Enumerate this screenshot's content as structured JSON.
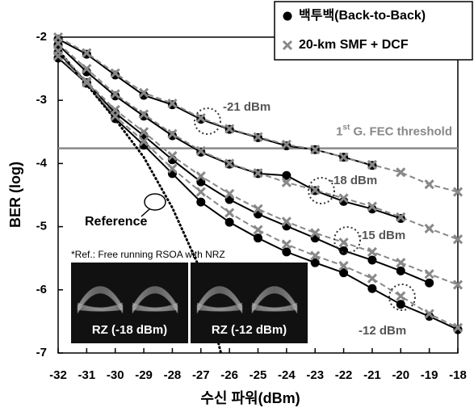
{
  "chart_data": {
    "type": "line",
    "x_label": "수신 파워(dBm)",
    "y_label": "BER (log)",
    "xlim": [
      -32,
      -18
    ],
    "ylim": [
      -7,
      -2
    ],
    "xticks": [
      -32,
      -31,
      -30,
      -29,
      -28,
      -27,
      -26,
      -25,
      -24,
      -23,
      -22,
      -21,
      -20,
      -19,
      -18
    ],
    "yticks": [
      -7,
      -6,
      -5,
      -4,
      -3,
      -2
    ],
    "series": [
      {
        "name": "백투백(Back-to-Back)",
        "color": "#000000",
        "marker": "circle",
        "dashed": false,
        "curves": [
          {
            "x": [
              -32,
              -31,
              -30,
              -29,
              -28,
              -27,
              -26,
              -25,
              -24,
              -23,
              -22,
              -21
            ],
            "values": [
              -2.03,
              -2.27,
              -2.6,
              -2.92,
              -3.07,
              -3.3,
              -3.46,
              -3.59,
              -3.72,
              -3.78,
              -3.9,
              -4.03
            ]
          },
          {
            "x": [
              -32,
              -31,
              -30,
              -29,
              -28,
              -27,
              -26,
              -25,
              -24,
              -23,
              -22,
              -21,
              -20
            ],
            "values": [
              -2.12,
              -2.55,
              -2.93,
              -3.25,
              -3.56,
              -3.82,
              -4.01,
              -4.16,
              -4.19,
              -4.43,
              -4.6,
              -4.72,
              -4.87
            ]
          },
          {
            "x": [
              -32,
              -31,
              -30,
              -29,
              -28,
              -27,
              -26,
              -25,
              -24,
              -23,
              -22,
              -21,
              -20,
              -19
            ],
            "values": [
              -2.24,
              -2.72,
              -3.2,
              -3.56,
              -3.94,
              -4.29,
              -4.57,
              -4.8,
              -4.99,
              -5.18,
              -5.38,
              -5.53,
              -5.7,
              -5.89
            ]
          },
          {
            "x": [
              -32,
              -31,
              -30,
              -29,
              -28,
              -27,
              -26,
              -25,
              -24,
              -23,
              -22,
              -21,
              -20,
              -19,
              -18
            ],
            "values": [
              -2.33,
              -2.73,
              -3.29,
              -3.71,
              -4.16,
              -4.61,
              -4.93,
              -5.18,
              -5.4,
              -5.57,
              -5.73,
              -5.98,
              -6.23,
              -6.42,
              -6.63
            ]
          }
        ]
      },
      {
        "name": "20-km SMF + DCF",
        "color": "#888888",
        "marker": "cross",
        "dashed": true,
        "curves": [
          {
            "x": [
              -32,
              -31,
              -30,
              -29,
              -28,
              -27,
              -26,
              -25,
              -24,
              -23,
              -22,
              -21,
              -20,
              -19,
              -18
            ],
            "values": [
              -2.0,
              -2.25,
              -2.57,
              -2.88,
              -3.05,
              -3.28,
              -3.45,
              -3.58,
              -3.7,
              -3.78,
              -3.9,
              -4.02,
              -4.14,
              -4.33,
              -4.45
            ]
          },
          {
            "x": [
              -32,
              -31,
              -30,
              -29,
              -28,
              -27,
              -26,
              -25,
              -24,
              -23,
              -22,
              -21,
              -20,
              -19,
              -18
            ],
            "values": [
              -2.1,
              -2.5,
              -2.9,
              -3.22,
              -3.53,
              -3.8,
              -4.0,
              -4.15,
              -4.3,
              -4.42,
              -4.55,
              -4.68,
              -4.85,
              -5.03,
              -5.2
            ]
          },
          {
            "x": [
              -32,
              -31,
              -30,
              -29,
              -28,
              -27,
              -26,
              -25,
              -24,
              -23,
              -22,
              -21,
              -20,
              -19,
              -18
            ],
            "values": [
              -2.22,
              -2.7,
              -3.15,
              -3.5,
              -3.88,
              -4.2,
              -4.48,
              -4.72,
              -4.92,
              -5.1,
              -5.25,
              -5.4,
              -5.57,
              -5.75,
              -5.92
            ]
          },
          {
            "x": [
              -32,
              -31,
              -30,
              -29,
              -28,
              -27,
              -26,
              -25,
              -24,
              -23,
              -22,
              -21,
              -20,
              -19,
              -18
            ],
            "values": [
              -2.3,
              -2.72,
              -3.25,
              -3.65,
              -4.08,
              -4.45,
              -4.78,
              -5.05,
              -5.28,
              -5.46,
              -5.62,
              -5.82,
              -6.1,
              -6.38,
              -6.6
            ]
          }
        ]
      }
    ],
    "reference": {
      "name": "Reference",
      "color": "#000000",
      "x": [
        -32,
        -31,
        -30,
        -29,
        -28,
        -27,
        -26.3
      ],
      "values": [
        -2.2,
        -2.75,
        -3.3,
        -3.9,
        -4.7,
        -5.7,
        -7
      ]
    },
    "threshold": {
      "value": -3.76,
      "color": "#888888",
      "label": [
        "1",
        "st",
        " G. FEC threshold"
      ]
    },
    "annotations": [
      "-21 dBm",
      "-18 dBm",
      "-15 dBm",
      "-12 dBm"
    ],
    "note": "*Ref.: Free running RSOA with NRZ",
    "insets": [
      "RZ (-18 dBm)",
      "RZ (-12 dBm)"
    ]
  }
}
